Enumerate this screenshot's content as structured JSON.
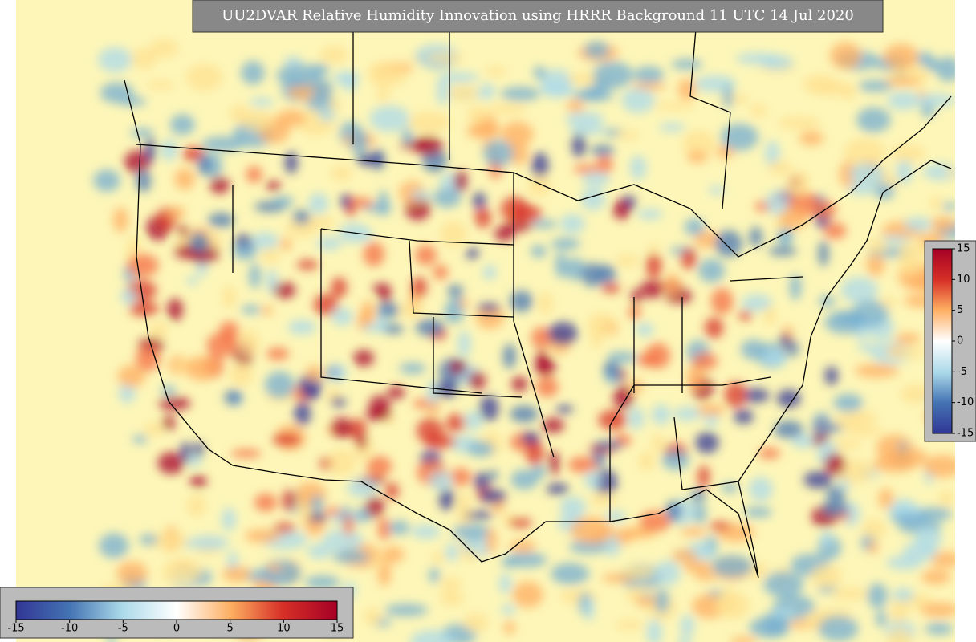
{
  "title": "UU2DVAR Relative Humidity Innovation using HRRR Background 11 UTC 14 Jul 2020",
  "colorbar_right": {
    "range": [
      -15,
      15
    ],
    "ticks": [
      -15,
      -10,
      -5,
      0,
      5,
      10,
      15
    ]
  },
  "colorbar_bottom": {
    "range": [
      -15,
      15
    ],
    "ticks": [
      -15,
      -10,
      -5,
      0,
      5,
      10,
      15
    ]
  }
}
